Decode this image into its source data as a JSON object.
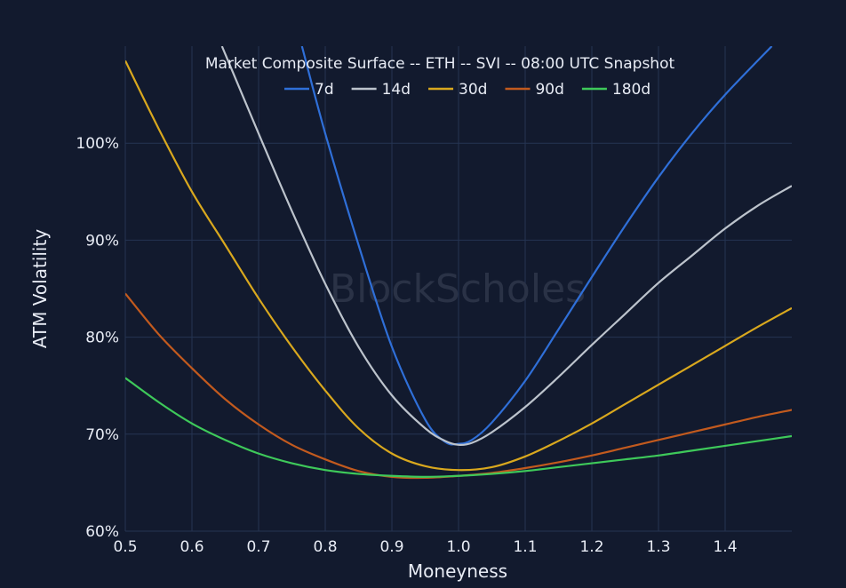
{
  "chart_data": {
    "type": "line",
    "title": "Market Composite Surface -- ETH -- SVI -- 08:00 UTC Snapshot",
    "xlabel": "Moneyness",
    "ylabel": "ATM Volatility",
    "watermark": "BlockScholes",
    "xlim": [
      0.5,
      1.5
    ],
    "ylim": [
      60,
      110
    ],
    "xticks": [
      0.5,
      0.6,
      0.7,
      0.8,
      0.9,
      1.0,
      1.1,
      1.2,
      1.3,
      1.4
    ],
    "xtick_labels": [
      "0.5",
      "0.6",
      "0.7",
      "0.8",
      "0.9",
      "1.0",
      "1.1",
      "1.2",
      "1.3",
      "1.4"
    ],
    "yticks": [
      60,
      70,
      80,
      90,
      100
    ],
    "ytick_labels": [
      "60%",
      "70%",
      "80%",
      "90%",
      "100%"
    ],
    "grid": true,
    "legend_position": "top-center",
    "background": "#121a2e",
    "grid_color": "#253452",
    "series": [
      {
        "name": "7d",
        "color": "#2f6fd8",
        "x": [
          0.765,
          0.8,
          0.85,
          0.9,
          0.95,
          0.98,
          1.0,
          1.02,
          1.05,
          1.1,
          1.15,
          1.2,
          1.25,
          1.3,
          1.35,
          1.4,
          1.47
        ],
        "y": [
          110,
          101,
          89.5,
          79,
          71.5,
          69.2,
          69.0,
          69.4,
          71.2,
          75.5,
          80.8,
          86.2,
          91.5,
          96.5,
          101,
          105,
          110
        ]
      },
      {
        "name": "14d",
        "color": "#bcc3cc",
        "x": [
          0.645,
          0.7,
          0.75,
          0.8,
          0.85,
          0.9,
          0.95,
          0.98,
          1.0,
          1.02,
          1.05,
          1.1,
          1.15,
          1.2,
          1.25,
          1.3,
          1.35,
          1.4,
          1.45,
          1.5
        ],
        "y": [
          110,
          101,
          93,
          85.5,
          79,
          74,
          70.6,
          69.3,
          68.9,
          69.1,
          70.2,
          72.8,
          75.9,
          79.2,
          82.4,
          85.6,
          88.4,
          91.2,
          93.6,
          95.6
        ]
      },
      {
        "name": "30d",
        "color": "#d9a81e",
        "x": [
          0.5,
          0.55,
          0.6,
          0.65,
          0.7,
          0.75,
          0.8,
          0.85,
          0.9,
          0.95,
          1.0,
          1.05,
          1.1,
          1.15,
          1.2,
          1.25,
          1.3,
          1.35,
          1.4,
          1.45,
          1.5
        ],
        "y": [
          108.5,
          101.5,
          95,
          89.5,
          84,
          79,
          74.5,
          70.6,
          68,
          66.7,
          66.3,
          66.6,
          67.7,
          69.3,
          71.1,
          73.1,
          75.1,
          77.1,
          79.1,
          81.1,
          83.0
        ]
      },
      {
        "name": "90d",
        "color": "#c25a1e",
        "x": [
          0.5,
          0.55,
          0.6,
          0.65,
          0.7,
          0.75,
          0.8,
          0.85,
          0.9,
          0.95,
          1.0,
          1.05,
          1.1,
          1.15,
          1.2,
          1.25,
          1.3,
          1.35,
          1.4,
          1.45,
          1.5
        ],
        "y": [
          84.5,
          80.3,
          76.8,
          73.6,
          71.0,
          68.9,
          67.4,
          66.2,
          65.6,
          65.5,
          65.7,
          66.0,
          66.5,
          67.1,
          67.8,
          68.6,
          69.4,
          70.2,
          71.0,
          71.8,
          72.5
        ]
      },
      {
        "name": "180d",
        "color": "#3ec95a",
        "x": [
          0.5,
          0.55,
          0.6,
          0.65,
          0.7,
          0.75,
          0.8,
          0.85,
          0.9,
          0.95,
          1.0,
          1.05,
          1.1,
          1.15,
          1.2,
          1.25,
          1.3,
          1.35,
          1.4,
          1.45,
          1.5
        ],
        "y": [
          75.8,
          73.3,
          71.1,
          69.4,
          68.0,
          67.0,
          66.3,
          65.9,
          65.7,
          65.6,
          65.7,
          65.9,
          66.2,
          66.6,
          67.0,
          67.4,
          67.8,
          68.3,
          68.8,
          69.3,
          69.8
        ]
      }
    ]
  }
}
